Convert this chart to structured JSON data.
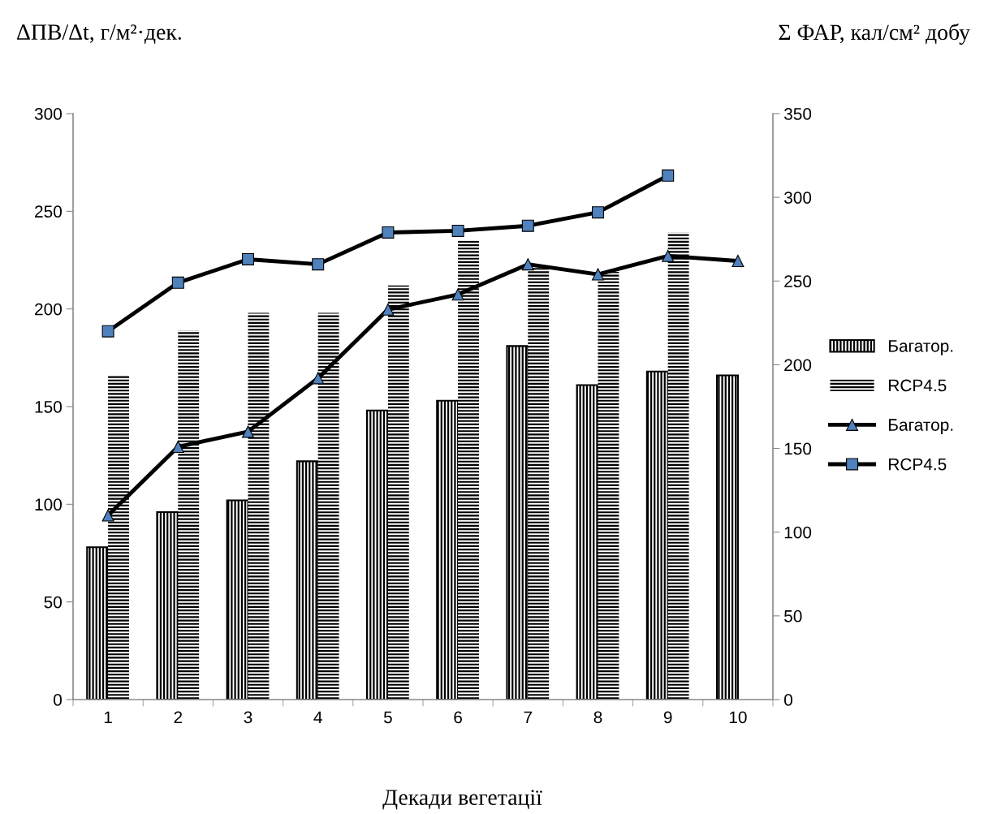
{
  "chart_data": {
    "type": "bar",
    "xlabel": "Декади вегетації",
    "ylabel": "ΔПВ/Δt, г/м²·дек.",
    "y2label": "Σ ФАР, кал/см² добу",
    "categories": [
      "1",
      "2",
      "3",
      "4",
      "5",
      "6",
      "7",
      "8",
      "9",
      "10"
    ],
    "series": [
      {
        "name": "Багатор.",
        "color": "#000000",
        "values": [
          78,
          96,
          102,
          122,
          148,
          153,
          181,
          161,
          168,
          166
        ]
      },
      {
        "name": "RCP4.5",
        "color": "#000000",
        "values": [
          166,
          189,
          198,
          198,
          212,
          235,
          222,
          219,
          239,
          null
        ]
      },
      {
        "name": "Багатор.",
        "type": "line",
        "axis": "y2",
        "color": "#000000",
        "marker": "triangle",
        "values": [
          110,
          151,
          160,
          192,
          233,
          242,
          260,
          254,
          265,
          262
        ]
      },
      {
        "name": "RCP4.5",
        "type": "line",
        "axis": "y2",
        "color": "#000000",
        "marker": "square",
        "values": [
          220,
          249,
          263,
          260,
          279,
          280,
          283,
          291,
          313,
          null
        ]
      }
    ],
    "ylim": [
      0,
      300
    ],
    "yticks": [
      0,
      50,
      100,
      150,
      200,
      250,
      300
    ],
    "y2lim": [
      0,
      350
    ],
    "y2ticks": [
      0,
      50,
      100,
      150,
      200,
      250,
      300,
      350
    ],
    "grid": false,
    "legend": "right"
  }
}
